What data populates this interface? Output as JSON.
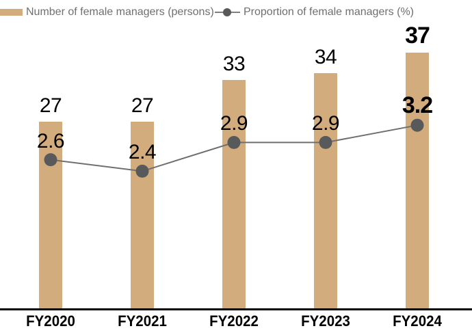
{
  "legend": {
    "bar_label": "Number of female managers (persons)",
    "line_label": "Proportion of female managers (%)"
  },
  "colors": {
    "bar": "#d3ac7d",
    "line": "#6f6f6f",
    "marker": "#58595b",
    "axis": "#000000",
    "value_text": "#000000",
    "legend_text": "#6f6f6f"
  },
  "chart_data": {
    "type": "bar",
    "subtype": "bar+line combo",
    "categories": [
      "FY2020",
      "FY2021",
      "FY2022",
      "FY2023",
      "FY2024"
    ],
    "series": [
      {
        "name": "Number of female managers (persons)",
        "type": "bar",
        "unit": "persons",
        "values": [
          27,
          27,
          33,
          34,
          37
        ]
      },
      {
        "name": "Proportion of female managers (%)",
        "type": "line",
        "unit": "%",
        "values": [
          2.6,
          2.4,
          2.9,
          2.9,
          3.2
        ]
      }
    ],
    "highlight_category": "FY2024",
    "bar_ylim": [
      0,
      44
    ],
    "line_ylim": [
      0,
      5.4
    ],
    "grid": false,
    "y_axis_visible": false,
    "data_labels": true,
    "legend_position": "top-left"
  }
}
